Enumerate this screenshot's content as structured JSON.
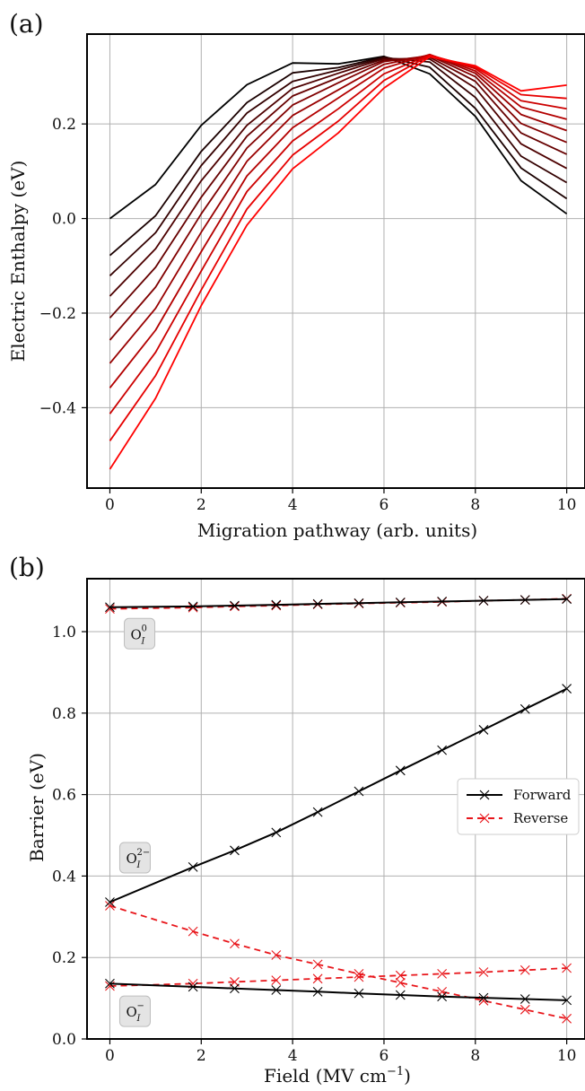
{
  "chart_data": [
    {
      "panel_label": "(a)",
      "type": "line",
      "xlabel": "Migration pathway (arb. units)",
      "ylabel": "Electric Enthalpy (eV)",
      "xlim": [
        -0.5,
        10.4
      ],
      "ylim": [
        -0.57,
        0.39
      ],
      "xticks": [
        0,
        2,
        4,
        6,
        8,
        10
      ],
      "yticks": [
        -0.4,
        -0.2,
        0.0,
        0.2
      ],
      "grid": true,
      "color_gradient": [
        "#000000",
        "#ff0000"
      ],
      "x": [
        0,
        1,
        2,
        3,
        4,
        5,
        6,
        7,
        8,
        9,
        10
      ],
      "series": [
        {
          "values": [
            0.0,
            0.072,
            0.197,
            0.283,
            0.329,
            0.327,
            0.343,
            0.306,
            0.216,
            0.08,
            0.01
          ]
        },
        {
          "values": [
            -0.078,
            0.006,
            0.142,
            0.245,
            0.308,
            0.319,
            0.342,
            0.32,
            0.233,
            0.107,
            0.042
          ]
        },
        {
          "values": [
            -0.121,
            -0.03,
            0.112,
            0.223,
            0.29,
            0.314,
            0.34,
            0.331,
            0.256,
            0.132,
            0.076
          ]
        },
        {
          "values": [
            -0.164,
            -0.064,
            0.08,
            0.197,
            0.275,
            0.307,
            0.338,
            0.337,
            0.276,
            0.158,
            0.106
          ]
        },
        {
          "values": [
            -0.21,
            -0.103,
            0.045,
            0.174,
            0.259,
            0.298,
            0.335,
            0.341,
            0.29,
            0.181,
            0.136
          ]
        },
        {
          "values": [
            -0.257,
            -0.145,
            0.01,
            0.149,
            0.24,
            0.287,
            0.332,
            0.344,
            0.3,
            0.201,
            0.161
          ]
        },
        {
          "values": [
            -0.306,
            -0.19,
            -0.029,
            0.121,
            0.218,
            0.272,
            0.326,
            0.346,
            0.307,
            0.22,
            0.186
          ]
        },
        {
          "values": [
            -0.358,
            -0.236,
            -0.07,
            0.09,
            0.192,
            0.255,
            0.318,
            0.347,
            0.312,
            0.236,
            0.21
          ]
        },
        {
          "values": [
            -0.413,
            -0.283,
            -0.111,
            0.057,
            0.164,
            0.232,
            0.306,
            0.346,
            0.317,
            0.249,
            0.232
          ]
        },
        {
          "values": [
            -0.47,
            -0.332,
            -0.151,
            0.02,
            0.134,
            0.206,
            0.292,
            0.345,
            0.32,
            0.262,
            0.254
          ]
        },
        {
          "values": [
            -0.53,
            -0.38,
            -0.184,
            -0.014,
            0.105,
            0.181,
            0.276,
            0.342,
            0.323,
            0.27,
            0.282
          ]
        }
      ]
    },
    {
      "panel_label": "(b)",
      "type": "line",
      "xlabel": "Field (MV cm",
      "xlabel_sup": "−1",
      "xlabel_end": ")",
      "ylabel": "Barrier (eV)",
      "xlim": [
        -0.5,
        10.4
      ],
      "ylim": [
        0.0,
        1.13
      ],
      "xticks": [
        0,
        2,
        4,
        6,
        8,
        10
      ],
      "yticks": [
        0.0,
        0.2,
        0.4,
        0.6,
        0.8,
        1.0
      ],
      "grid": true,
      "legend_position": "center-right",
      "legend": [
        {
          "label": "Forward",
          "color": "#000000",
          "dash": "solid"
        },
        {
          "label": "Reverse",
          "color": "#e8161b",
          "dash": "dashed"
        }
      ],
      "annotations": [
        {
          "base": "O",
          "sup": "0",
          "sub": "I",
          "x": 0.65,
          "y": 0.995
        },
        {
          "base": "O",
          "sup": "2−",
          "sub": "I",
          "x": 0.55,
          "y": 0.445
        },
        {
          "base": "O",
          "sup": "−",
          "sub": "I",
          "x": 0.55,
          "y": 0.068
        }
      ],
      "series": [
        {
          "name": "Forward",
          "state": "O_I^0",
          "x": [
            0,
            1.82,
            2.73,
            3.64,
            4.55,
            5.45,
            6.36,
            7.27,
            8.18,
            9.09,
            10
          ],
          "values": [
            1.06,
            1.062,
            1.064,
            1.066,
            1.068,
            1.07,
            1.072,
            1.074,
            1.076,
            1.078,
            1.08
          ]
        },
        {
          "name": "Reverse",
          "state": "O_I^0",
          "x": [
            0,
            1.82,
            2.73,
            3.64,
            4.55,
            5.45,
            6.36,
            7.27,
            8.18,
            9.09,
            10
          ],
          "values": [
            1.056,
            1.059,
            1.062,
            1.064,
            1.067,
            1.069,
            1.071,
            1.073,
            1.076,
            1.078,
            1.081
          ]
        },
        {
          "name": "Forward",
          "state": "O_I^2-",
          "x": [
            0,
            1.82,
            2.73,
            3.64,
            4.55,
            5.45,
            6.36,
            7.27,
            8.18,
            9.09,
            10
          ],
          "values": [
            0.336,
            0.422,
            0.463,
            0.507,
            0.557,
            0.608,
            0.659,
            0.709,
            0.759,
            0.81,
            0.86
          ]
        },
        {
          "name": "Reverse",
          "state": "O_I^2-",
          "x": [
            0,
            1.82,
            2.73,
            3.64,
            4.55,
            5.45,
            6.36,
            7.27,
            8.18,
            9.09,
            10
          ],
          "values": [
            0.327,
            0.264,
            0.234,
            0.206,
            0.183,
            0.16,
            0.138,
            0.116,
            0.094,
            0.072,
            0.05
          ]
        },
        {
          "name": "Forward",
          "state": "O_I^-",
          "x": [
            0,
            1.82,
            2.73,
            3.64,
            4.55,
            5.45,
            6.36,
            7.27,
            8.18,
            9.09,
            10
          ],
          "values": [
            0.136,
            0.128,
            0.124,
            0.12,
            0.116,
            0.112,
            0.108,
            0.104,
            0.101,
            0.098,
            0.095
          ]
        },
        {
          "name": "Reverse",
          "state": "O_I^-",
          "x": [
            0,
            1.82,
            2.73,
            3.64,
            4.55,
            5.45,
            6.36,
            7.27,
            8.18,
            9.09,
            10
          ],
          "values": [
            0.13,
            0.136,
            0.14,
            0.144,
            0.148,
            0.152,
            0.156,
            0.16,
            0.164,
            0.169,
            0.174
          ]
        }
      ]
    }
  ]
}
